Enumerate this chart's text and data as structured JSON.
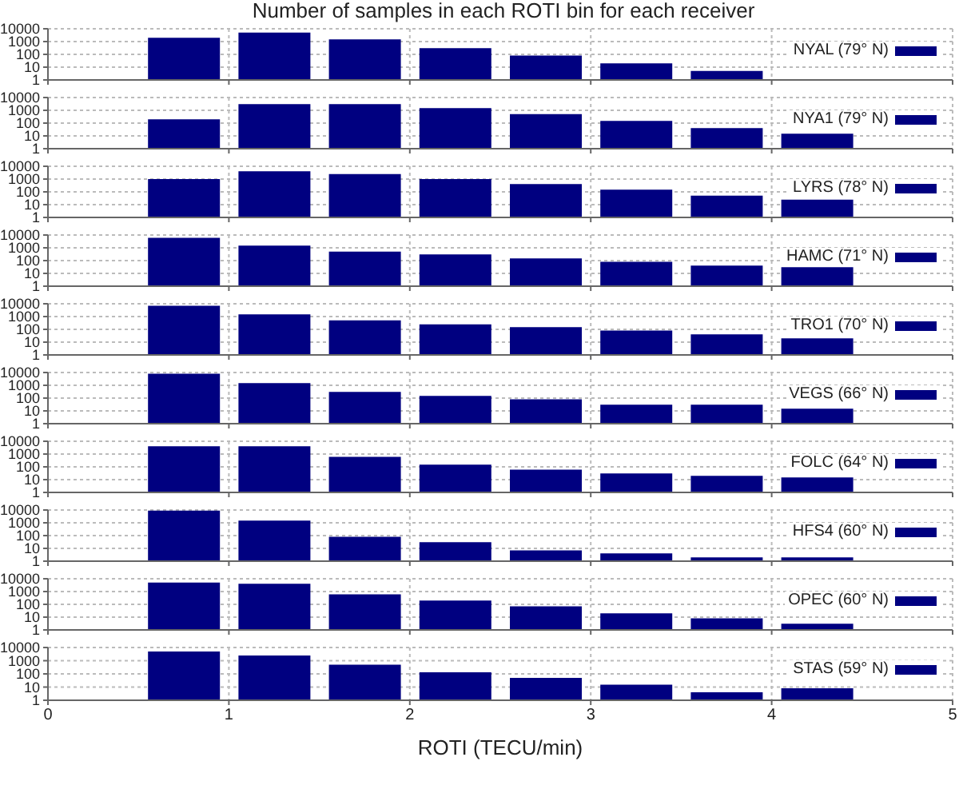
{
  "chart_data": [
    {
      "type": "bar",
      "title": "Number of samples in each ROTI bin for each receiver",
      "x": [
        0.75,
        1.25,
        1.75,
        2.25,
        2.75,
        3.25,
        3.75
      ],
      "series": [
        {
          "name": "NYAL (79° N)",
          "color": "#000080",
          "values": [
            2000,
            5000,
            1500,
            300,
            80,
            20,
            5
          ]
        }
      ],
      "xlim": [
        0,
        5
      ],
      "xticks": [
        0,
        1,
        2,
        3,
        4,
        5
      ],
      "ylim": [
        1,
        10000
      ],
      "yticks": [
        1,
        10,
        100,
        1000,
        10000
      ],
      "log": "y",
      "grid": true,
      "legend": "top right",
      "tick_labels": "y"
    },
    {
      "type": "bar",
      "x": [
        0.75,
        1.25,
        1.75,
        2.25,
        2.75,
        3.25,
        3.75,
        4.25
      ],
      "series": [
        {
          "name": "NYA1 (79° N)",
          "color": "#000080",
          "values": [
            200,
            3000,
            3000,
            1500,
            500,
            150,
            40,
            15
          ]
        }
      ],
      "xlim": [
        0,
        5
      ],
      "xticks": [
        0,
        1,
        2,
        3,
        4,
        5
      ],
      "ylim": [
        1,
        10000
      ],
      "yticks": [
        1,
        10,
        100,
        1000,
        10000
      ],
      "log": "y",
      "grid": true,
      "legend": "top right",
      "tick_labels": "y"
    },
    {
      "type": "bar",
      "x": [
        0.75,
        1.25,
        1.75,
        2.25,
        2.75,
        3.25,
        3.75,
        4.25
      ],
      "series": [
        {
          "name": "LYRS (78° N)",
          "color": "#000080",
          "values": [
            1000,
            4000,
            2500,
            1000,
            400,
            150,
            50,
            25
          ]
        }
      ],
      "xlim": [
        0,
        5
      ],
      "xticks": [
        0,
        1,
        2,
        3,
        4,
        5
      ],
      "ylim": [
        1,
        10000
      ],
      "yticks": [
        1,
        10,
        100,
        1000,
        10000
      ],
      "log": "y",
      "grid": true,
      "legend": "top right",
      "tick_labels": "y"
    },
    {
      "type": "bar",
      "x": [
        0.75,
        1.25,
        1.75,
        2.25,
        2.75,
        3.25,
        3.75,
        4.25
      ],
      "series": [
        {
          "name": "HAMC (71° N)",
          "color": "#000080",
          "values": [
            6000,
            1500,
            500,
            300,
            150,
            80,
            40,
            30
          ]
        }
      ],
      "xlim": [
        0,
        5
      ],
      "xticks": [
        0,
        1,
        2,
        3,
        4,
        5
      ],
      "ylim": [
        1,
        10000
      ],
      "yticks": [
        1,
        10,
        100,
        1000,
        10000
      ],
      "log": "y",
      "grid": true,
      "legend": "top right",
      "tick_labels": "y"
    },
    {
      "type": "bar",
      "x": [
        0.75,
        1.25,
        1.75,
        2.25,
        2.75,
        3.25,
        3.75,
        4.25
      ],
      "series": [
        {
          "name": "TRO1 (70° N)",
          "color": "#000080",
          "values": [
            7000,
            1500,
            500,
            250,
            150,
            80,
            40,
            20
          ]
        }
      ],
      "xlim": [
        0,
        5
      ],
      "xticks": [
        0,
        1,
        2,
        3,
        4,
        5
      ],
      "ylim": [
        1,
        10000
      ],
      "yticks": [
        1,
        10,
        100,
        1000,
        10000
      ],
      "log": "y",
      "grid": true,
      "legend": "top right",
      "tick_labels": "y"
    },
    {
      "type": "bar",
      "x": [
        0.75,
        1.25,
        1.75,
        2.25,
        2.75,
        3.25,
        3.75,
        4.25
      ],
      "series": [
        {
          "name": "VEGS (66° N)",
          "color": "#000080",
          "values": [
            8000,
            1500,
            300,
            150,
            80,
            30,
            30,
            15
          ]
        }
      ],
      "xlim": [
        0,
        5
      ],
      "xticks": [
        0,
        1,
        2,
        3,
        4,
        5
      ],
      "ylim": [
        1,
        10000
      ],
      "yticks": [
        1,
        10,
        100,
        1000,
        10000
      ],
      "log": "y",
      "grid": true,
      "legend": "top right",
      "tick_labels": "y"
    },
    {
      "type": "bar",
      "x": [
        0.75,
        1.25,
        1.75,
        2.25,
        2.75,
        3.25,
        3.75,
        4.25
      ],
      "series": [
        {
          "name": "FOLC (64° N)",
          "color": "#000080",
          "values": [
            4000,
            4000,
            600,
            150,
            60,
            30,
            20,
            15
          ]
        }
      ],
      "xlim": [
        0,
        5
      ],
      "xticks": [
        0,
        1,
        2,
        3,
        4,
        5
      ],
      "ylim": [
        1,
        10000
      ],
      "yticks": [
        1,
        10,
        100,
        1000,
        10000
      ],
      "log": "y",
      "grid": true,
      "legend": "top right",
      "tick_labels": "y"
    },
    {
      "type": "bar",
      "x": [
        0.75,
        1.25,
        1.75,
        2.25,
        2.75,
        3.25,
        3.75,
        4.25
      ],
      "series": [
        {
          "name": "HFS4 (60° N)",
          "color": "#000080",
          "values": [
            9000,
            1500,
            80,
            30,
            7,
            4,
            2,
            2
          ]
        }
      ],
      "xlim": [
        0,
        5
      ],
      "xticks": [
        0,
        1,
        2,
        3,
        4,
        5
      ],
      "ylim": [
        1,
        10000
      ],
      "yticks": [
        1,
        10,
        100,
        1000,
        10000
      ],
      "log": "y",
      "grid": true,
      "legend": "top right",
      "tick_labels": "y"
    },
    {
      "type": "bar",
      "x": [
        0.75,
        1.25,
        1.75,
        2.25,
        2.75,
        3.25,
        3.75,
        4.25
      ],
      "series": [
        {
          "name": "OPEC (60° N)",
          "color": "#000080",
          "values": [
            5000,
            4000,
            600,
            200,
            70,
            20,
            8,
            3
          ]
        }
      ],
      "xlim": [
        0,
        5
      ],
      "xticks": [
        0,
        1,
        2,
        3,
        4,
        5
      ],
      "ylim": [
        1,
        10000
      ],
      "yticks": [
        1,
        10,
        100,
        1000,
        10000
      ],
      "log": "y",
      "grid": true,
      "legend": "top right",
      "tick_labels": "y"
    },
    {
      "type": "bar",
      "xlabel": "ROTI (TECU/min)",
      "x": [
        0.75,
        1.25,
        1.75,
        2.25,
        2.75,
        3.25,
        3.75,
        4.25
      ],
      "series": [
        {
          "name": "STAS (59° N)",
          "color": "#000080",
          "values": [
            5000,
            2500,
            500,
            130,
            50,
            15,
            4,
            8
          ]
        }
      ],
      "xlim": [
        0,
        5
      ],
      "xticks": [
        0,
        1,
        2,
        3,
        4,
        5
      ],
      "ylim": [
        1,
        10000
      ],
      "yticks": [
        1,
        10,
        100,
        1000,
        10000
      ],
      "log": "y",
      "grid": true,
      "legend": "top right"
    }
  ]
}
